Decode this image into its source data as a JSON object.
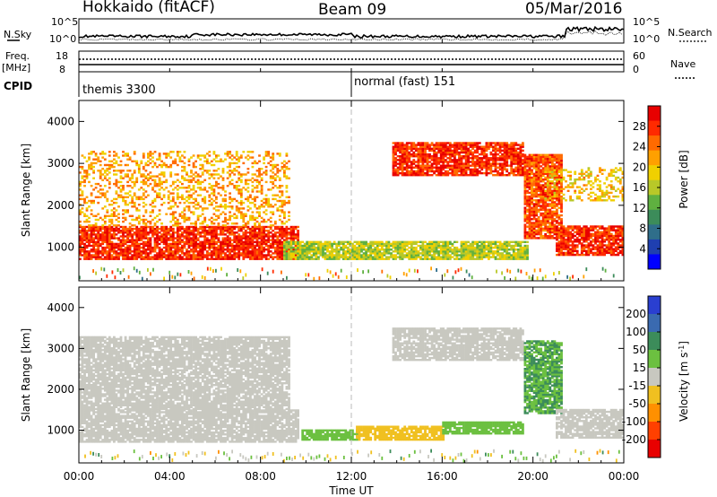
{
  "header": {
    "station": "Hokkaido (fitACF)",
    "beam": "Beam 09",
    "date": "05/Mar/2016"
  },
  "top_panels": {
    "nsky_label": "N.Sky",
    "nsky_ticks": [
      "10^5",
      "10^0"
    ],
    "nsearch_label": "N.Search",
    "nsearch_ticks": [
      "10^5",
      "10^0"
    ],
    "freq_label": "Freq.",
    "freq_unit": "[MHz]",
    "freq_ticks": [
      "18",
      "8"
    ],
    "nave_label": "Nave",
    "nave_ticks": [
      "60",
      "0"
    ],
    "cpid_label": "CPID",
    "cpid_modes": [
      "themis 3300",
      "normal (fast) 151"
    ]
  },
  "chart_data": [
    {
      "type": "heatmap",
      "panel": "power",
      "xlabel": "Time UT",
      "ylabel": "Slant Range [km]",
      "xlim": [
        0,
        24
      ],
      "ylim": [
        200,
        4500
      ],
      "x_ticks": [
        "00:00",
        "04:00",
        "08:00",
        "12:00",
        "16:00",
        "20:00",
        "00:00"
      ],
      "y_ticks": [
        1000,
        2000,
        3000,
        4000
      ],
      "colorbar": {
        "label": "Power [dB]",
        "range": [
          0,
          32
        ],
        "ticks": [
          4,
          8,
          12,
          16,
          20,
          24,
          28
        ],
        "colors": [
          "#0000ff",
          "#1f3fb0",
          "#2f6e8a",
          "#3c8c5a",
          "#5fb040",
          "#b8c828",
          "#f0d000",
          "#ffa000",
          "#ff6a00",
          "#ff2a00",
          "#e80000"
        ]
      },
      "features": [
        {
          "time_start": 0.0,
          "time_end": 9.6,
          "range_low": 700,
          "range_high": 1500,
          "power_db": 28,
          "desc": "strong band"
        },
        {
          "time_start": 0.0,
          "time_end": 9.2,
          "range_low": 1500,
          "range_high": 3300,
          "power_db": 22,
          "desc": "scattered echoes"
        },
        {
          "time_start": 9.0,
          "time_end": 19.8,
          "range_low": 700,
          "range_high": 1150,
          "power_db": 16,
          "desc": "weak band"
        },
        {
          "time_start": 13.8,
          "time_end": 19.6,
          "range_low": 2700,
          "range_high": 3500,
          "power_db": 28,
          "desc": "strong band"
        },
        {
          "time_start": 19.6,
          "time_end": 21.3,
          "range_low": 1200,
          "range_high": 3200,
          "power_db": 26,
          "desc": "descending band"
        },
        {
          "time_start": 21.0,
          "time_end": 24.0,
          "range_low": 800,
          "range_high": 1500,
          "power_db": 28,
          "desc": "strong band"
        },
        {
          "time_start": 20.5,
          "time_end": 24.0,
          "range_low": 2100,
          "range_high": 2900,
          "power_db": 20,
          "desc": "scattered echoes"
        }
      ]
    },
    {
      "type": "heatmap",
      "panel": "velocity",
      "xlabel": "Time UT",
      "ylabel": "Slant Range [km]",
      "xlim": [
        0,
        24
      ],
      "ylim": [
        200,
        4500
      ],
      "x_ticks": [
        "00:00",
        "04:00",
        "08:00",
        "12:00",
        "16:00",
        "20:00",
        "00:00"
      ],
      "y_ticks": [
        1000,
        2000,
        3000,
        4000
      ],
      "colorbar": {
        "label": "Velocity",
        "unit": "[m s",
        "unit_sup": "-1",
        "unit_end": "]",
        "ticks": [
          "200",
          "100",
          "50",
          "15",
          "-15",
          "-50",
          "-100",
          "-200"
        ],
        "colors": [
          "#2a3fd0",
          "#3a6ab0",
          "#3c8c5a",
          "#6cc040",
          "#c8c8c0",
          "#f0c020",
          "#ff9000",
          "#ff4000",
          "#e80000"
        ]
      },
      "features": [
        {
          "time_start": 0.0,
          "time_end": 9.6,
          "range_low": 700,
          "range_high": 1500,
          "velocity": 0
        },
        {
          "time_start": 0.0,
          "time_end": 9.2,
          "range_low": 1500,
          "range_high": 3300,
          "velocity": 0
        },
        {
          "time_start": 9.8,
          "time_end": 12.2,
          "range_low": 750,
          "range_high": 1000,
          "velocity": 40
        },
        {
          "time_start": 12.2,
          "time_end": 16.0,
          "range_low": 750,
          "range_high": 1100,
          "velocity": -40
        },
        {
          "time_start": 16.0,
          "time_end": 19.6,
          "range_low": 900,
          "range_high": 1200,
          "velocity": 40
        },
        {
          "time_start": 13.8,
          "time_end": 19.6,
          "range_low": 2700,
          "range_high": 3500,
          "velocity": 0
        },
        {
          "time_start": 19.6,
          "time_end": 21.3,
          "range_low": 1400,
          "range_high": 3200,
          "velocity": 50
        },
        {
          "time_start": 21.0,
          "time_end": 24.0,
          "range_low": 800,
          "range_high": 1500,
          "velocity": 0
        }
      ]
    }
  ]
}
